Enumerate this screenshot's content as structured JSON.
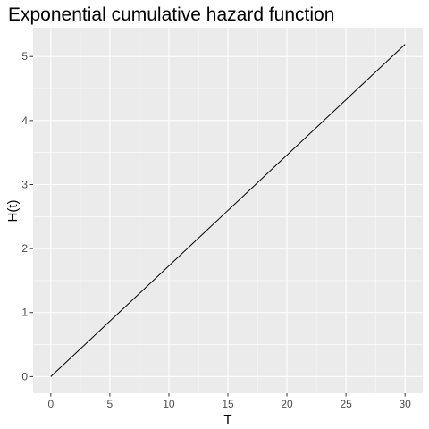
{
  "chart_data": {
    "type": "line",
    "title": "Exponential cumulative hazard function",
    "xlabel": "T",
    "ylabel": "H(t)",
    "xlim": [
      -1.5,
      31.5
    ],
    "ylim": [
      -0.26,
      5.45
    ],
    "x_ticks": [
      0,
      5,
      10,
      15,
      20,
      25,
      30
    ],
    "y_ticks": [
      0,
      1,
      2,
      3,
      4,
      5
    ],
    "x_tick_labels": [
      "0",
      "5",
      "10",
      "15",
      "20",
      "25",
      "30"
    ],
    "y_tick_labels": [
      "0",
      "1",
      "2",
      "3",
      "4",
      "5"
    ],
    "grid": true,
    "legend": "none",
    "colors": {
      "panel": "#ebebeb",
      "grid_major": "#ffffff",
      "line": "#000000",
      "tick": "#333333"
    },
    "series": [
      {
        "x": [
          0,
          30
        ],
        "y": [
          0,
          5.19
        ]
      }
    ]
  }
}
